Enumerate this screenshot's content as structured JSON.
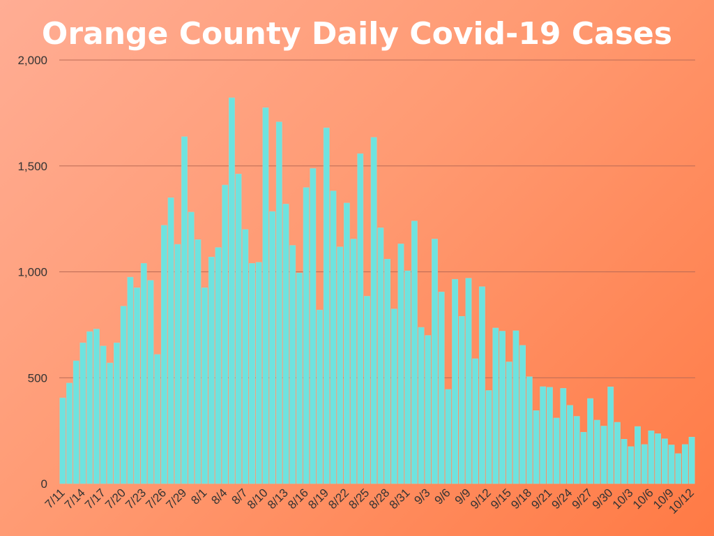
{
  "chart_data": {
    "type": "bar",
    "title": "Orange County Daily Covid-19 Cases",
    "xlabel": "",
    "ylabel": "",
    "ylim": [
      0,
      2000
    ],
    "yticks": [
      0,
      500,
      1000,
      1500,
      2000
    ],
    "ytick_labels": [
      "0",
      "500",
      "1,000",
      "1,500",
      "2,000"
    ],
    "grid": true,
    "bar_color": "#6ee3df",
    "categories": [
      "7/11",
      "7/12",
      "7/13",
      "7/14",
      "7/15",
      "7/16",
      "7/17",
      "7/18",
      "7/19",
      "7/20",
      "7/21",
      "7/22",
      "7/23",
      "7/24",
      "7/25",
      "7/26",
      "7/27",
      "7/28",
      "7/29",
      "7/30",
      "7/31",
      "8/1",
      "8/2",
      "8/3",
      "8/4",
      "8/5",
      "8/6",
      "8/7",
      "8/8",
      "8/9",
      "8/10",
      "8/11",
      "8/12",
      "8/13",
      "8/14",
      "8/15",
      "8/16",
      "8/17",
      "8/18",
      "8/19",
      "8/20",
      "8/21",
      "8/22",
      "8/23",
      "8/24",
      "8/25",
      "8/26",
      "8/27",
      "8/28",
      "8/29",
      "8/30",
      "8/31",
      "9/1",
      "9/2",
      "9/3",
      "9/4",
      "9/5",
      "9/6",
      "9/7",
      "9/8",
      "9/9",
      "9/10",
      "9/11",
      "9/12",
      "9/13",
      "9/14",
      "9/15",
      "9/16",
      "9/17",
      "9/18",
      "9/19",
      "9/20",
      "9/21",
      "9/22",
      "9/23",
      "9/24",
      "9/25",
      "9/26",
      "9/27",
      "9/28",
      "9/29",
      "9/30",
      "10/1",
      "10/2",
      "10/3",
      "10/4",
      "10/5",
      "10/6",
      "10/7",
      "10/8",
      "10/9",
      "10/10",
      "10/11",
      "10/12"
    ],
    "tick_labels": [
      "7/11",
      "7/14",
      "7/17",
      "7/20",
      "7/23",
      "7/26",
      "7/29",
      "8/1",
      "8/4",
      "8/7",
      "8/10",
      "8/13",
      "8/16",
      "8/19",
      "8/22",
      "8/25",
      "8/28",
      "8/31",
      "9/3",
      "9/6",
      "9/9",
      "9/12",
      "9/15",
      "9/18",
      "9/21",
      "9/24",
      "9/27",
      "9/30",
      "10/3",
      "10/6",
      "10/9",
      "10/12"
    ],
    "values": [
      405,
      475,
      580,
      665,
      718,
      730,
      650,
      570,
      665,
      838,
      975,
      925,
      1040,
      960,
      610,
      1220,
      1350,
      1130,
      1638,
      1282,
      1152,
      925,
      1070,
      1115,
      1410,
      1822,
      1462,
      1200,
      1040,
      1045,
      1775,
      1285,
      1708,
      1320,
      1125,
      995,
      1398,
      1488,
      820,
      1680,
      1382,
      1118,
      1325,
      1155,
      1558,
      885,
      1635,
      1208,
      1060,
      825,
      1132,
      1005,
      1240,
      738,
      700,
      1155,
      905,
      445,
      965,
      790,
      970,
      590,
      930,
      440,
      735,
      720,
      575,
      722,
      653,
      505,
      345,
      458,
      455,
      310,
      450,
      370,
      318,
      243,
      402,
      300,
      272,
      457,
      290,
      210,
      175,
      270,
      185,
      250,
      236,
      212,
      183,
      142,
      185,
      220
    ]
  }
}
